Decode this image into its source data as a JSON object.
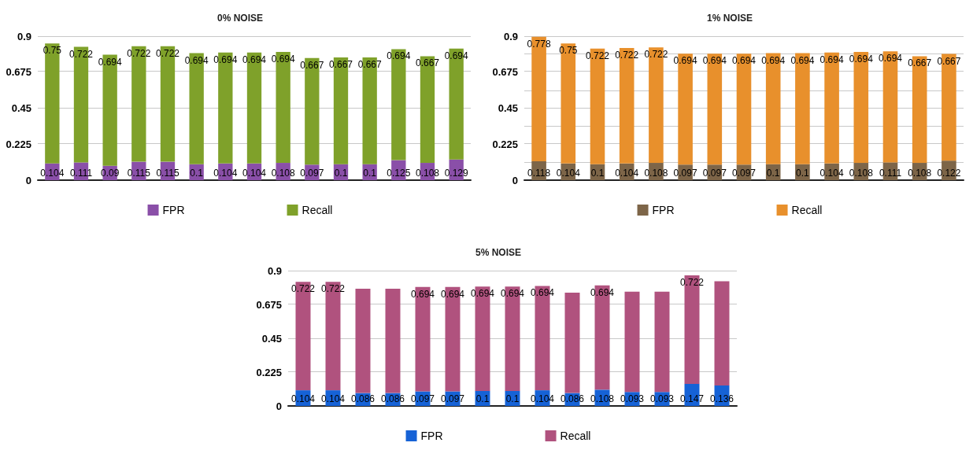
{
  "chart_data": [
    {
      "type": "bar",
      "title": "0% NOISE",
      "stacked": true,
      "categories": [
        null,
        null,
        null,
        null,
        null,
        null,
        null,
        null,
        null,
        null,
        null,
        null,
        null,
        null,
        null
      ],
      "ylim": [
        0,
        0.9
      ],
      "yticks": [
        0,
        0.225,
        0.45,
        0.675,
        0.9
      ],
      "grid": "y",
      "legend": "bottom",
      "data_labels": true,
      "series": [
        {
          "name": "FPR",
          "color": "#8a4fa8",
          "values": [
            0.104,
            0.111,
            0.09,
            0.115,
            0.115,
            0.1,
            0.104,
            0.104,
            0.108,
            0.097,
            0.1,
            0.1,
            0.125,
            0.108,
            0.129
          ]
        },
        {
          "name": "Recall",
          "color": "#7fa12a",
          "values": [
            0.75,
            0.722,
            0.694,
            0.722,
            0.722,
            0.694,
            0.694,
            0.694,
            0.694,
            0.667,
            0.667,
            0.667,
            0.694,
            0.667,
            0.694
          ]
        }
      ]
    },
    {
      "type": "bar",
      "title": "1% NOISE",
      "stacked": true,
      "categories": [
        null,
        null,
        null,
        null,
        null,
        null,
        null,
        null,
        null,
        null,
        null,
        null,
        null,
        null,
        null
      ],
      "ylim": [
        0,
        0.9
      ],
      "yticks": [
        0,
        {
          "value": 0.1125,
          "label": null
        },
        0.225,
        {
          "value": 0.3375,
          "label": null
        },
        0.45,
        {
          "value": 0.5625,
          "label": null
        },
        0.675,
        {
          "value": 0.7875,
          "label": null
        },
        0.9
      ],
      "grid": "y",
      "legend": "bottom",
      "data_labels": true,
      "series": [
        {
          "name": "FPR",
          "color": "#7d6548",
          "values": [
            0.118,
            0.104,
            0.1,
            0.104,
            0.108,
            0.097,
            0.097,
            0.097,
            0.1,
            0.1,
            0.104,
            0.108,
            0.111,
            0.108,
            0.122
          ]
        },
        {
          "name": "Recall",
          "color": "#e8902c",
          "values": [
            0.778,
            0.75,
            0.722,
            0.722,
            0.722,
            0.694,
            0.694,
            0.694,
            0.694,
            0.694,
            0.694,
            0.694,
            0.694,
            0.667,
            0.667
          ]
        }
      ]
    },
    {
      "type": "bar",
      "title": "5% NOISE",
      "stacked": true,
      "categories": [
        null,
        null,
        null,
        null,
        null,
        null,
        null,
        null,
        null,
        null,
        null,
        null,
        null,
        null,
        null
      ],
      "ylim": [
        0,
        0.9
      ],
      "yticks": [
        0,
        0.225,
        0.45,
        0.675,
        0.9
      ],
      "grid": "y",
      "legend": "bottom",
      "series": [
        {
          "name": "FPR",
          "color": "#1662d6",
          "values": [
            0.104,
            0.104,
            0.086,
            0.086,
            0.097,
            0.097,
            0.1,
            0.1,
            0.104,
            0.086,
            0.108,
            0.093,
            0.093,
            0.147,
            0.136
          ],
          "value_labels": [
            "0.104",
            "0.104",
            "0.086",
            "0.086",
            "0.097",
            "0.097",
            "0.1",
            "0.1",
            "0.104",
            "0.086",
            "0.108",
            "0.093",
            "0.093",
            "0.147",
            "0.136"
          ]
        },
        {
          "name": "Recall",
          "color": "#b0527e",
          "values": [
            0.722,
            0.722,
            0.694,
            0.694,
            0.694,
            0.694,
            0.694,
            0.694,
            0.694,
            0.667,
            0.694,
            0.667,
            0.667,
            0.722,
            0.694
          ],
          "value_labels": [
            "0.722",
            "0.722",
            null,
            null,
            "0.694",
            "0.694",
            "0.694",
            "0.694",
            "0.694",
            null,
            "0.694",
            null,
            null,
            "0.722",
            null
          ]
        }
      ]
    }
  ]
}
